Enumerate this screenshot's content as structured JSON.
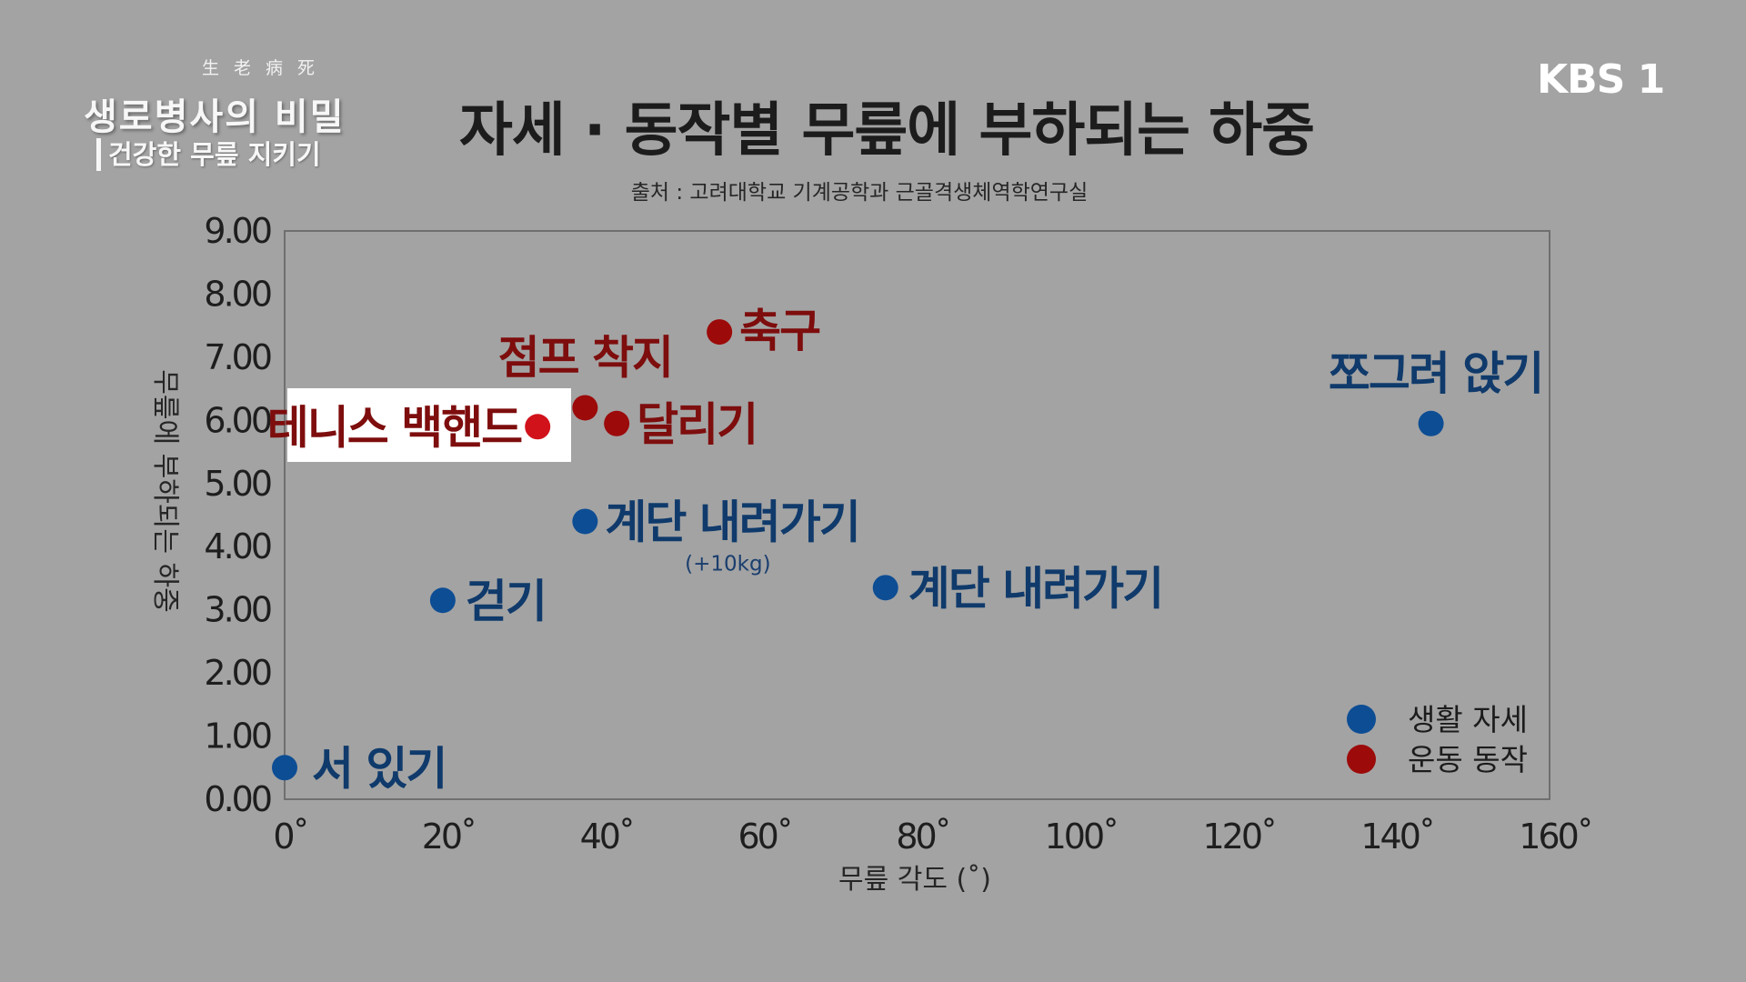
{
  "branding": {
    "show_hanja": "生老病死",
    "show_title": "생로병사의 비밀",
    "show_subtitle": "건강한 무릎 지키기",
    "broadcaster": "KBS 1"
  },
  "colors": {
    "background": "#a3a3a3",
    "daily_posture": "#0d4d94",
    "exercise": "#9c0a0a",
    "daily_label": "#0f3a6b",
    "exercise_label": "#7e0d0d",
    "highlight_dot": "#d1121b"
  },
  "chart_data": {
    "type": "scatter",
    "title": "자세 · 동작별 무릎에 부하되는 하중",
    "subtitle": "출처 : 고려대학교 기계공학과 근골격생체역학연구실",
    "xlabel": "무릎 각도 (˚)",
    "ylabel": "무릎에 부하되는 하중",
    "xlim": [
      0,
      160
    ],
    "ylim": [
      0,
      9
    ],
    "x_ticks": [
      0,
      20,
      40,
      60,
      80,
      100,
      120,
      140,
      160
    ],
    "x_tick_labels": [
      "0˚",
      "20˚",
      "40˚",
      "60˚",
      "80˚",
      "100˚",
      "120˚",
      "140˚",
      "160˚"
    ],
    "y_ticks": [
      0,
      1,
      2,
      3,
      4,
      5,
      6,
      7,
      8,
      9
    ],
    "y_tick_labels": [
      "0.00",
      "1.00",
      "2.00",
      "3.00",
      "4.00",
      "5.00",
      "6.00",
      "7.00",
      "8.00",
      "9.00"
    ],
    "grid": false,
    "legend_position": "bottom-right",
    "series": [
      {
        "name": "생활 자세",
        "color": "#0d4d94",
        "points": [
          {
            "label": "서 있기",
            "x": 0,
            "y": 0.5
          },
          {
            "label": "걷기",
            "x": 20,
            "y": 3.15
          },
          {
            "label": "계단 내려가기",
            "note": "(+10kg)",
            "x": 38,
            "y": 4.4
          },
          {
            "label": "계단 내려가기",
            "x": 76,
            "y": 3.35
          },
          {
            "label": "쪼그려 앉기",
            "x": 145,
            "y": 5.95
          }
        ]
      },
      {
        "name": "운동 동작",
        "color": "#9c0a0a",
        "points": [
          {
            "label": "테니스 백핸드",
            "x": 32,
            "y": 5.9,
            "highlighted": true
          },
          {
            "label": "점프 착지",
            "x": 38,
            "y": 6.2
          },
          {
            "label": "달리기",
            "x": 42,
            "y": 5.95
          },
          {
            "label": "축구",
            "x": 55,
            "y": 7.4
          }
        ]
      }
    ]
  }
}
